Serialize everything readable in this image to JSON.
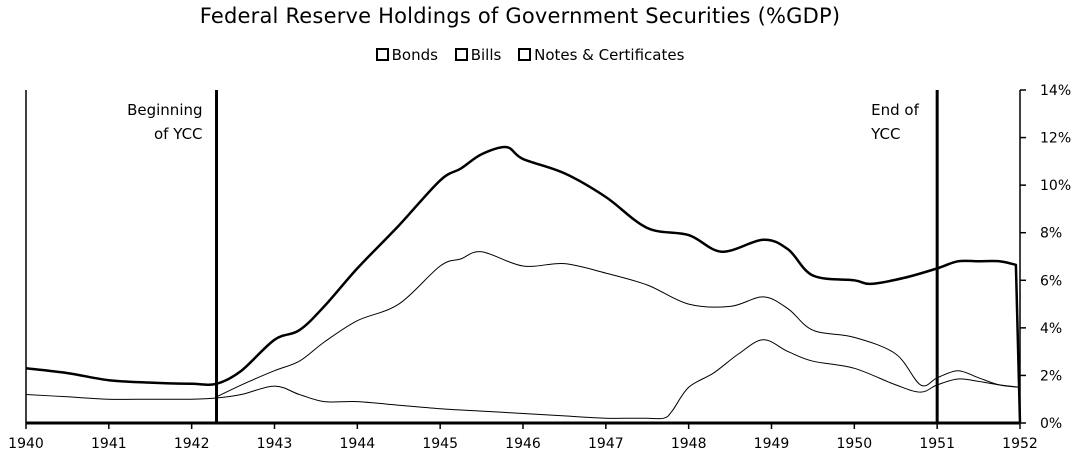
{
  "chart_data": {
    "type": "line",
    "title": "Federal Reserve Holdings of Government Securities (%GDP)",
    "xlabel": "",
    "ylabel": "",
    "xlim": [
      1940,
      1952
    ],
    "ylim": [
      0,
      14
    ],
    "x_ticks": [
      "1940",
      "1941",
      "1942",
      "1943",
      "1944",
      "1945",
      "1946",
      "1947",
      "1948",
      "1949",
      "1950",
      "1951",
      "1952"
    ],
    "y_ticks": [
      "0%",
      "2%",
      "4%",
      "6%",
      "8%",
      "10%",
      "12%",
      "14%"
    ],
    "grid": false,
    "legend_position": "top-center",
    "series": [
      {
        "name": "Bonds",
        "stroke_width": 1,
        "x": [
          1940.0,
          1940.5,
          1941.0,
          1941.5,
          1942.0,
          1942.3,
          1942.6,
          1943.0,
          1943.3,
          1943.6,
          1944.0,
          1944.5,
          1945.0,
          1945.5,
          1946.0,
          1946.5,
          1947.0,
          1947.3,
          1947.5,
          1947.7,
          1947.8,
          1948.0,
          1948.3,
          1948.6,
          1948.9,
          1949.2,
          1949.5,
          1950.0,
          1950.5,
          1950.8,
          1951.0,
          1951.25,
          1951.5,
          1951.75,
          1952.0
        ],
        "y": [
          1.2,
          1.1,
          1.0,
          1.0,
          1.0,
          1.05,
          1.2,
          1.55,
          1.2,
          0.9,
          0.9,
          0.75,
          0.6,
          0.5,
          0.4,
          0.3,
          0.2,
          0.2,
          0.2,
          0.2,
          0.5,
          1.5,
          2.1,
          2.9,
          3.5,
          3.0,
          2.6,
          2.3,
          1.6,
          1.3,
          1.6,
          1.85,
          1.75,
          1.6,
          1.5
        ]
      },
      {
        "name": "Bills",
        "stroke_width": 1,
        "x": [
          1942.3,
          1942.6,
          1943.0,
          1943.3,
          1943.6,
          1944.0,
          1944.5,
          1945.0,
          1945.25,
          1945.5,
          1946.0,
          1946.5,
          1947.0,
          1947.5,
          1948.0,
          1948.5,
          1948.9,
          1949.2,
          1949.5,
          1950.0,
          1950.5,
          1950.8,
          1951.0,
          1951.25,
          1951.5,
          1951.75,
          1952.0
        ],
        "y": [
          1.1,
          1.6,
          2.2,
          2.6,
          3.4,
          4.3,
          5.0,
          6.6,
          6.9,
          7.2,
          6.6,
          6.7,
          6.3,
          5.8,
          5.0,
          4.9,
          5.3,
          4.8,
          3.9,
          3.6,
          2.9,
          1.6,
          1.9,
          2.2,
          1.9,
          1.6,
          1.5
        ]
      },
      {
        "name": "Notes & Certificates",
        "stroke_width": 2.5,
        "x": [
          1940.0,
          1940.5,
          1941.0,
          1941.5,
          1942.0,
          1942.3,
          1942.6,
          1943.0,
          1943.3,
          1943.6,
          1944.0,
          1944.5,
          1945.0,
          1945.25,
          1945.5,
          1945.8,
          1946.0,
          1946.5,
          1947.0,
          1947.5,
          1948.0,
          1948.4,
          1948.9,
          1949.2,
          1949.5,
          1950.0,
          1950.2,
          1950.6,
          1951.0,
          1951.25,
          1951.5,
          1951.75,
          1951.95,
          1952.0
        ],
        "y": [
          2.3,
          2.1,
          1.8,
          1.7,
          1.65,
          1.65,
          2.2,
          3.5,
          3.9,
          4.9,
          6.5,
          8.3,
          10.2,
          10.7,
          11.3,
          11.6,
          11.1,
          10.5,
          9.5,
          8.2,
          7.9,
          7.2,
          7.7,
          7.3,
          6.2,
          6.0,
          5.85,
          6.1,
          6.5,
          6.8,
          6.8,
          6.8,
          6.65,
          0.0
        ]
      }
    ],
    "annotations": [
      {
        "lines": [
          "Beginning",
          "of YCC"
        ],
        "at_x": 1942.3
      },
      {
        "lines": [
          "End of",
          "YCC"
        ],
        "at_x": 1951.0
      }
    ]
  }
}
